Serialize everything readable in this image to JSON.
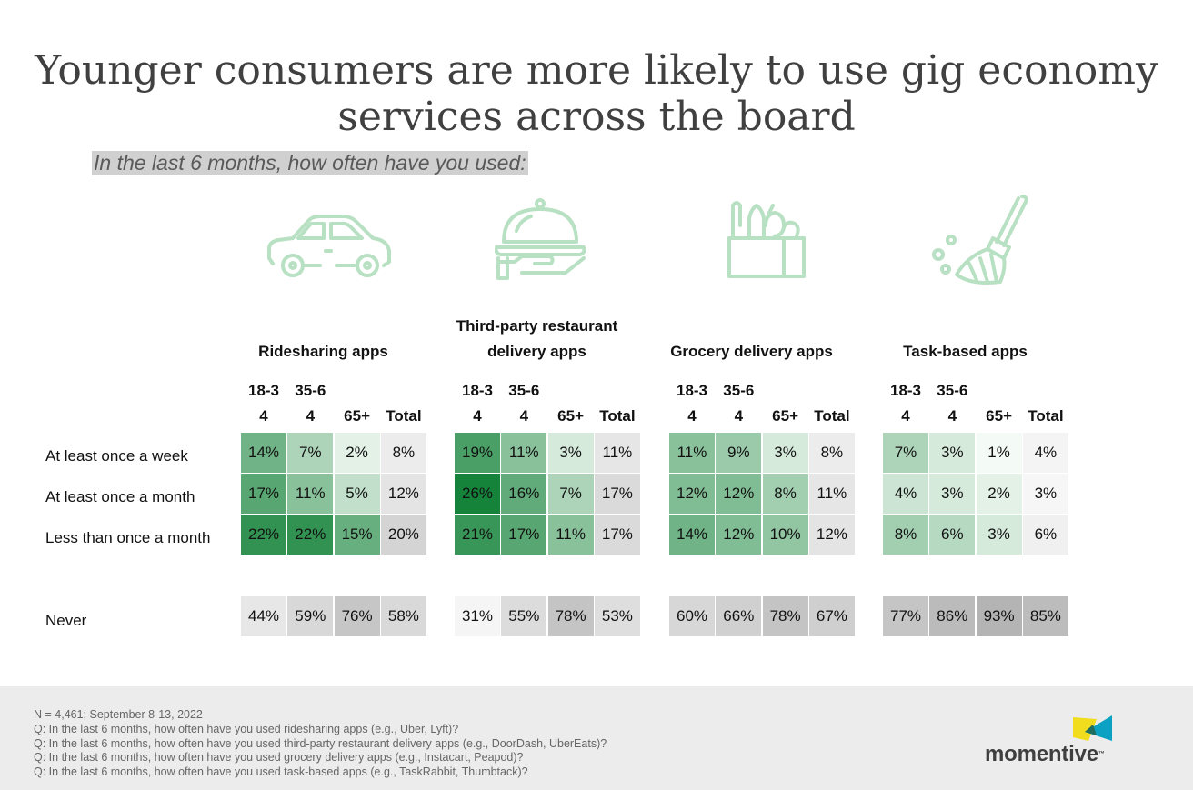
{
  "title_line1": "Younger consumers are more likely to use gig economy",
  "title_line2": "services across the board",
  "subtitle": "In the last 6 months, how often have you used:",
  "colors": {
    "icon": "#b8e0c2",
    "green_scale": [
      "#f4faf5",
      "#15833a"
    ],
    "gray_scale": [
      "#f6f6f6",
      "#b4b4b4"
    ],
    "footer_bg": "#ececec",
    "logo_yellow": "#f2dc1e",
    "logo_teal": "#0aa1c2"
  },
  "icons": [
    "car-icon",
    "food-cloche-icon",
    "grocery-bag-icon",
    "broom-icon"
  ],
  "chart_data": {
    "type": "table",
    "columns": [
      "18-3\n4",
      "35-6\n4",
      "65+",
      "Total"
    ],
    "column_lines": [
      [
        "18-3",
        "4"
      ],
      [
        "35-6",
        "4"
      ],
      [
        "",
        "65+"
      ],
      [
        "",
        "Total"
      ]
    ],
    "rows": [
      "At least once a week",
      "At least once a month",
      "Less than once a month",
      "Never"
    ],
    "groups": [
      {
        "title_lines": [
          "",
          "Ridesharing apps"
        ],
        "values": [
          [
            "14%",
            "7%",
            "2%",
            "8%"
          ],
          [
            "17%",
            "11%",
            "5%",
            "12%"
          ],
          [
            "22%",
            "22%",
            "15%",
            "20%"
          ],
          [
            "44%",
            "59%",
            "76%",
            "58%"
          ]
        ]
      },
      {
        "title_lines": [
          "Third-party restaurant",
          "delivery apps"
        ],
        "values": [
          [
            "19%",
            "11%",
            "3%",
            "11%"
          ],
          [
            "26%",
            "16%",
            "7%",
            "17%"
          ],
          [
            "21%",
            "17%",
            "11%",
            "17%"
          ],
          [
            "31%",
            "55%",
            "78%",
            "53%"
          ]
        ]
      },
      {
        "title_lines": [
          "",
          "Grocery delivery apps"
        ],
        "values": [
          [
            "11%",
            "9%",
            "3%",
            "8%"
          ],
          [
            "12%",
            "12%",
            "8%",
            "11%"
          ],
          [
            "14%",
            "12%",
            "10%",
            "12%"
          ],
          [
            "60%",
            "66%",
            "78%",
            "67%"
          ]
        ]
      },
      {
        "title_lines": [
          "",
          "Task-based apps"
        ],
        "values": [
          [
            "7%",
            "3%",
            "1%",
            "4%"
          ],
          [
            "4%",
            "3%",
            "2%",
            "3%"
          ],
          [
            "8%",
            "6%",
            "3%",
            "6%"
          ],
          [
            "77%",
            "86%",
            "93%",
            "85%"
          ]
        ]
      }
    ]
  },
  "footer": {
    "notes": [
      "N = 4,461; September 8-13, 2022",
      "Q: In the last 6 months, how often have you used ridesharing apps (e.g., Uber, Lyft)?",
      "Q: In the last 6 months, how often have you used third-party restaurant delivery apps (e.g., DoorDash, UberEats)?",
      "Q: In the last 6 months, how often have you used grocery delivery apps (e.g., Instacart, Peapod)?",
      "Q: In the last 6 months, how often have you used task-based apps (e.g., TaskRabbit, Thumbtack)?"
    ],
    "logo_text": "momentive",
    "logo_mark": "™"
  }
}
